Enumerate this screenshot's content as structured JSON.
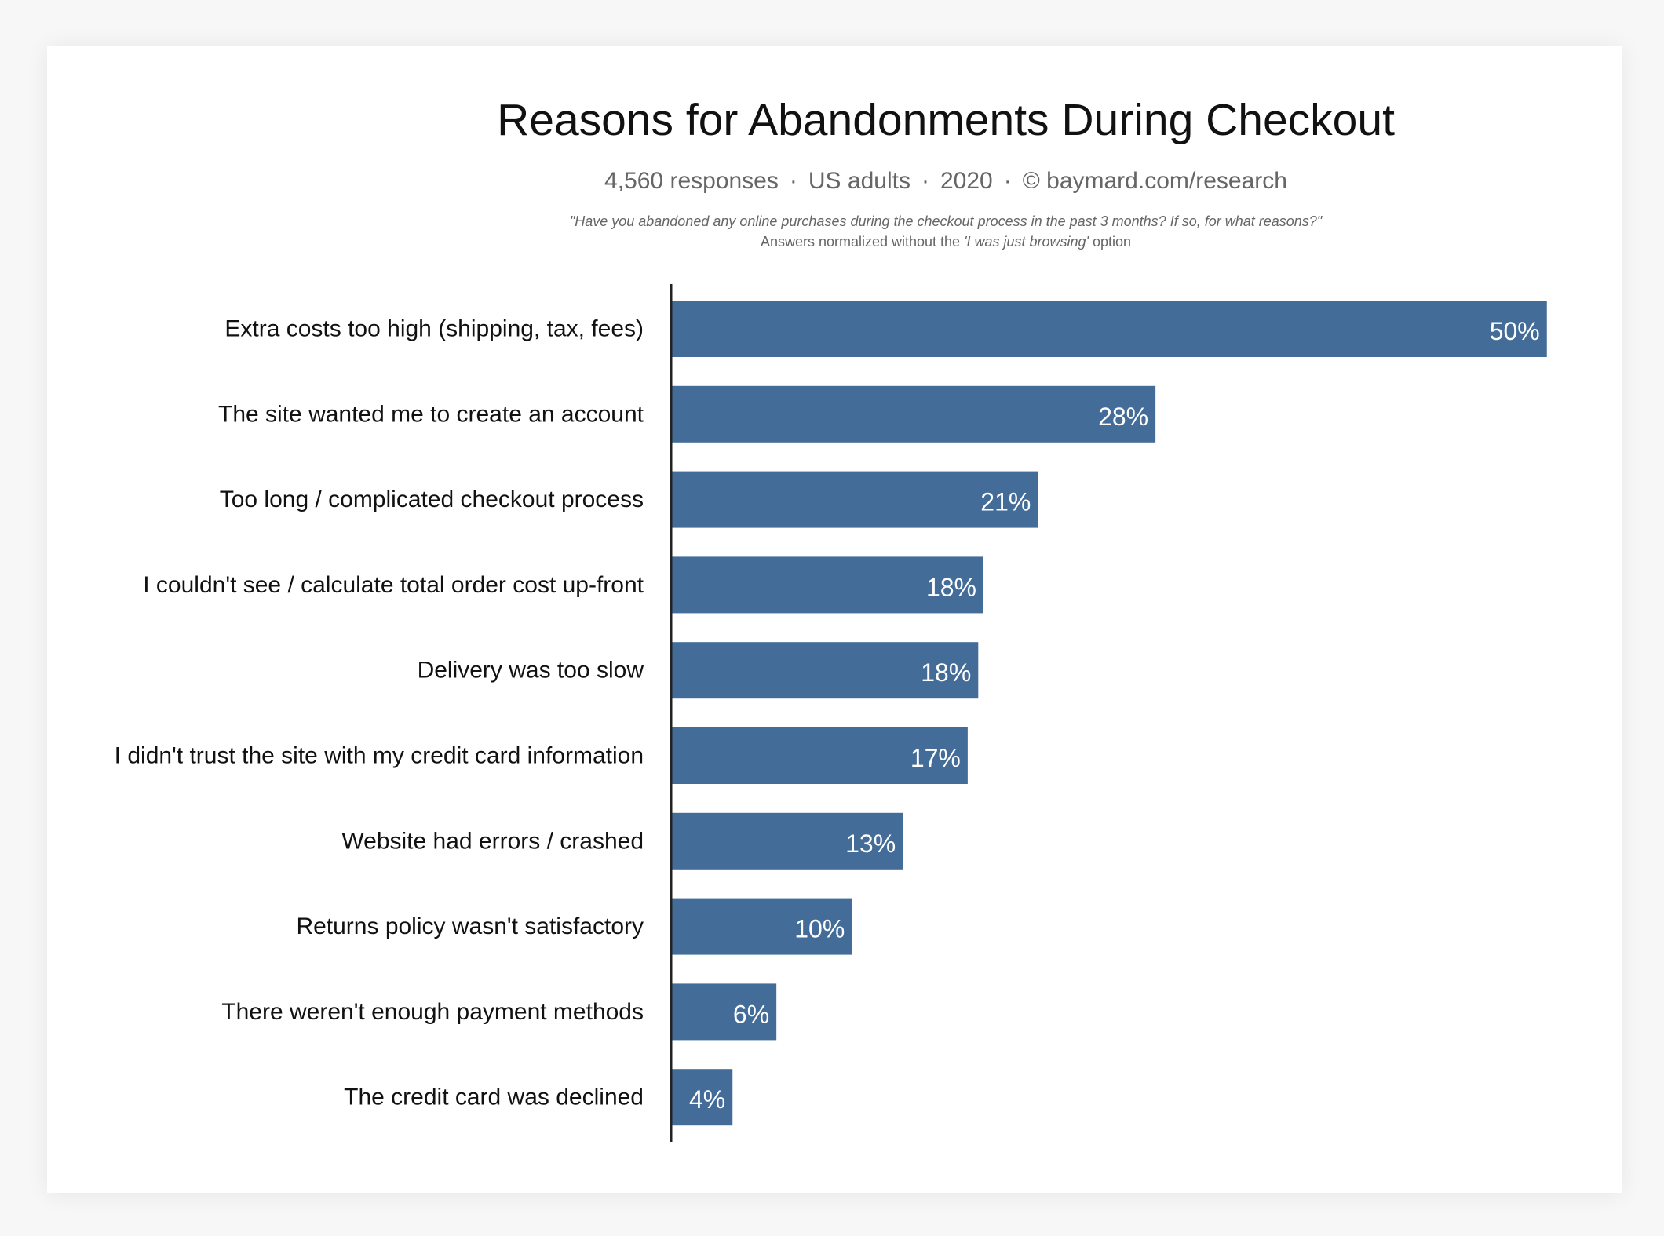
{
  "colors": {
    "bar": "#436d98",
    "axis": "#222222",
    "background": "#ffffff"
  },
  "chart_data": {
    "type": "bar",
    "orientation": "horizontal",
    "title": "Reasons for Abandonments During Checkout",
    "subtitle": {
      "responses": "4,560 responses",
      "population": "US adults",
      "year": "2020",
      "source": "© baymard.com/research",
      "separator": "·"
    },
    "question": "\"Have you abandoned any online purchases during the checkout process in the past 3 months? If so, for what reasons?\"",
    "note": {
      "prefix": "Answers normalized without the ",
      "emphasis": "'I was just browsing'",
      "suffix": " option"
    },
    "categories": [
      "Extra costs too high (shipping, tax, fees)",
      "The site wanted me to create an account",
      "Too long / complicated checkout process",
      "I couldn't see / calculate total order cost up-front",
      "Delivery was too slow",
      "I didn't trust the site with my credit card information",
      "Website had errors / crashed",
      "Returns policy wasn't satisfactory",
      "There weren't enough payment methods",
      "The credit card was declined"
    ],
    "values": [
      49.9,
      27.6,
      20.9,
      17.8,
      17.5,
      16.9,
      13.2,
      10.3,
      6.0,
      3.5
    ],
    "value_labels": [
      "50%",
      "28%",
      "21%",
      "18%",
      "18%",
      "17%",
      "13%",
      "10%",
      "6%",
      "4%"
    ],
    "unit": "%",
    "xlim": [
      0,
      50
    ],
    "grid": false,
    "legend": "none"
  }
}
